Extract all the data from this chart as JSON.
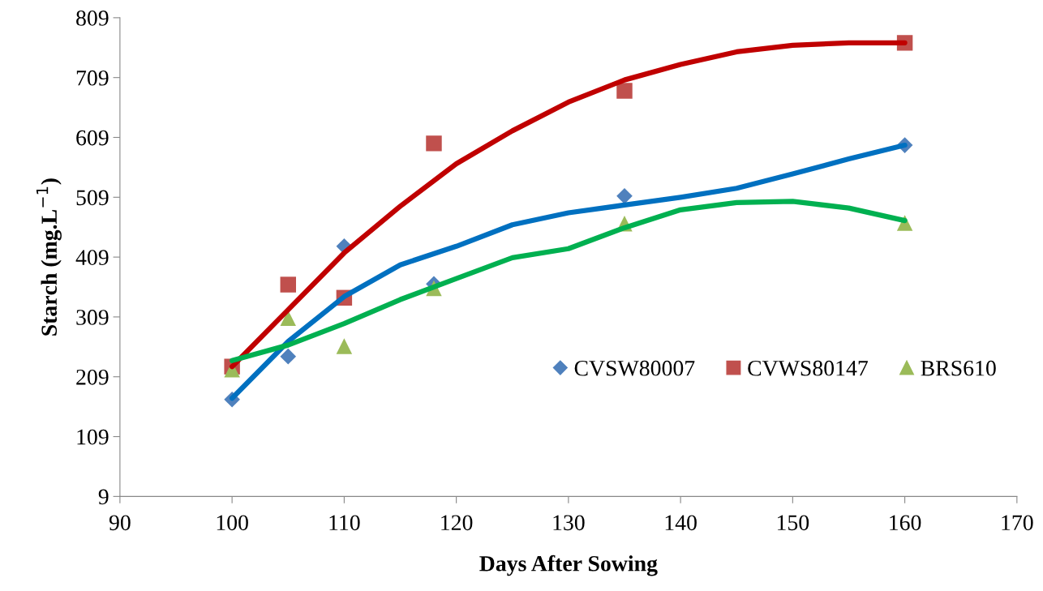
{
  "chart_data": {
    "type": "scatter",
    "xlabel": "Days After Sowing",
    "ylabel": "Starch (mg.L$^{−1}$)",
    "xlim": [
      90,
      170
    ],
    "xticks": [
      90,
      100,
      110,
      120,
      130,
      140,
      150,
      160,
      170
    ],
    "ylim": [
      9,
      809
    ],
    "yticks": [
      9,
      109,
      209,
      309,
      409,
      509,
      609,
      709,
      809
    ],
    "grid": false,
    "legend": "bottom right",
    "series": [
      {
        "type": "line",
        "color": "#0070c0",
        "line_style": "solid",
        "x": [
          100,
          105,
          110,
          115,
          120,
          125,
          130,
          135,
          140,
          145,
          150,
          155,
          160
        ],
        "values": [
          173,
          268,
          343,
          396,
          427,
          463,
          483,
          496,
          509,
          524,
          548,
          573,
          596
        ]
      },
      {
        "type": "line",
        "color": "#c00000",
        "line_style": "solid",
        "x": [
          100,
          105,
          110,
          115,
          120,
          125,
          130,
          135,
          140,
          145,
          150,
          155,
          160
        ],
        "values": [
          226,
          321,
          416,
          494,
          565,
          620,
          668,
          705,
          731,
          752,
          763,
          767,
          767
        ]
      },
      {
        "type": "line",
        "color": "#00b050",
        "line_style": "solid",
        "x": [
          100,
          105,
          110,
          115,
          120,
          125,
          130,
          135,
          140,
          145,
          150,
          155,
          160
        ],
        "values": [
          236,
          262,
          298,
          338,
          373,
          408,
          423,
          458,
          488,
          500,
          502,
          491,
          470
        ]
      },
      {
        "name": "CVSW80007",
        "color": "#4f81bd",
        "marker": "diamond",
        "x": [
          100,
          105,
          110,
          118,
          135,
          160
        ],
        "values": [
          171,
          243,
          427,
          364,
          511,
          596
        ]
      },
      {
        "name": "CVWS80147",
        "color": "#c0504d",
        "marker": "square",
        "x": [
          100,
          105,
          110,
          118,
          135,
          160
        ],
        "values": [
          226,
          363,
          341,
          599,
          687,
          767
        ]
      },
      {
        "name": "BRS610",
        "color": "#9bbb59",
        "marker": "triangle",
        "x": [
          100,
          105,
          110,
          118,
          135,
          160
        ],
        "values": [
          221,
          307,
          260,
          357,
          465,
          466
        ]
      }
    ]
  }
}
